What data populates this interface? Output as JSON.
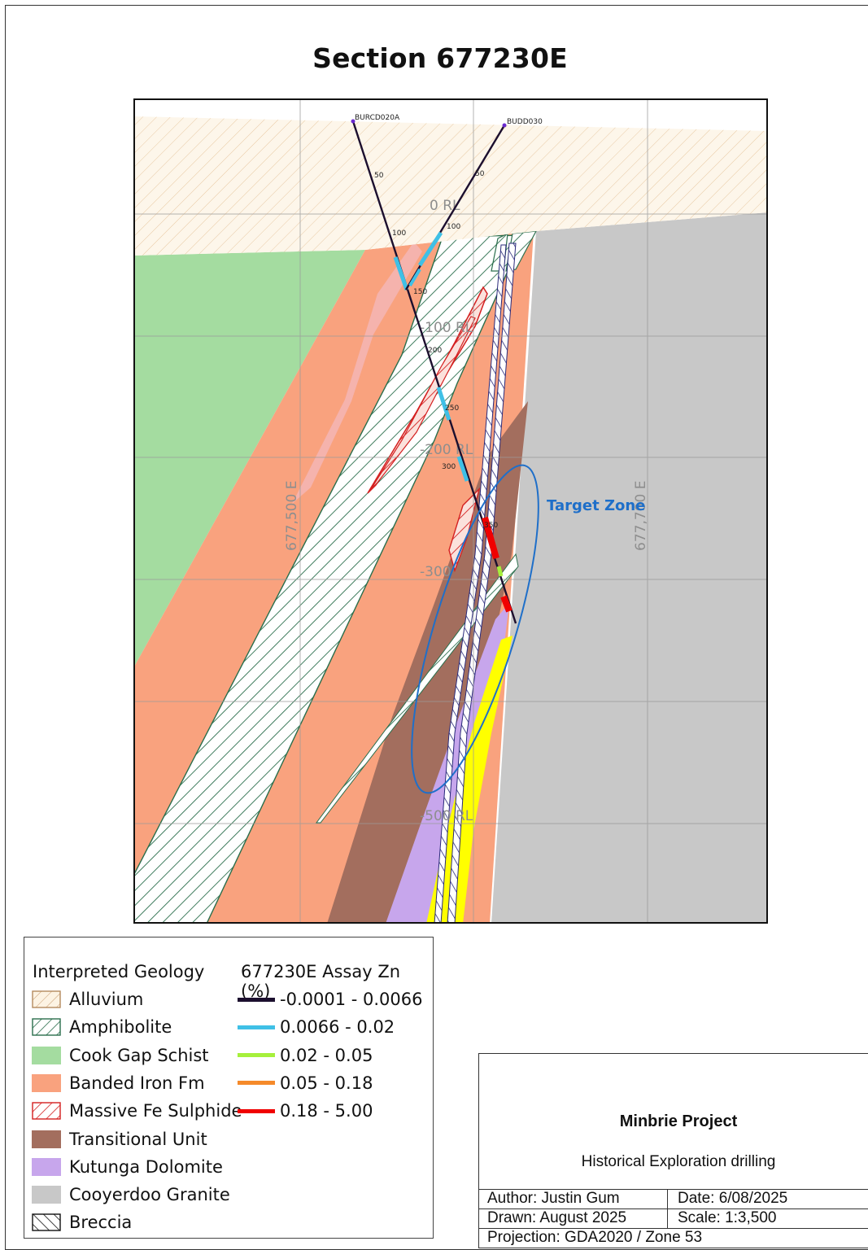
{
  "title": "Section 677230E",
  "map": {
    "grid_labels": {
      "rl_0": "0 RL",
      "rl_100": "-100 RL",
      "rl_200": "-200 RL",
      "rl_300": "-300",
      "rl_500": "-500 RL",
      "e_500": "677,500 E",
      "e_700": "677,700 E"
    },
    "holes": [
      {
        "name": "BURCD020A",
        "depth_labels": [
          "50",
          "100",
          "150",
          "200",
          "250",
          "300",
          "350"
        ]
      },
      {
        "name": "BUDD030",
        "depth_labels": [
          "50",
          "100"
        ]
      }
    ],
    "target_label": "Target Zone"
  },
  "legend": {
    "geology_title": "Interpreted Geology",
    "assay_title": "677230E Assay Zn (%)",
    "geology": [
      {
        "label": "Alluvium",
        "color": "#fdf3e3",
        "pattern": "hatch-brown"
      },
      {
        "label": "Amphibolite",
        "color": "#ffffff",
        "pattern": "hatch-green"
      },
      {
        "label": "Cook Gap Schist",
        "color": "#a4dca0",
        "pattern": "solid"
      },
      {
        "label": "Banded Iron Fm",
        "color": "#f9a27e",
        "pattern": "solid"
      },
      {
        "label": "Massive Fe Sulphide",
        "color": "#ffffff",
        "pattern": "hatch-red"
      },
      {
        "label": "Transitional Unit",
        "color": "#a36e5e",
        "pattern": "solid"
      },
      {
        "label": "Kutunga Dolomite",
        "color": "#c7a6ec",
        "pattern": "solid"
      },
      {
        "label": "Cooyerdoo Granite",
        "color": "#c8c8c8",
        "pattern": "solid"
      },
      {
        "label": "Breccia",
        "color": "#ffffff",
        "pattern": "hatch-black"
      }
    ],
    "assay": [
      {
        "label": "-0.0001 - 0.0066",
        "color": "#1c0f2e"
      },
      {
        "label": "0.0066 - 0.02",
        "color": "#3fc0e6"
      },
      {
        "label": "0.02 - 0.05",
        "color": "#a6f03c"
      },
      {
        "label": "0.05 - 0.18",
        "color": "#f58a2a"
      },
      {
        "label": "0.18 - 5.00",
        "color": "#f00000"
      }
    ]
  },
  "titleblock": {
    "project": "Minbrie Project",
    "subtitle": "Historical Exploration drilling",
    "author": "Author: Justin Gum",
    "date": "Date: 6/08/2025",
    "drawn": "Drawn: August 2025",
    "scale": "Scale: 1:3,500",
    "projection": "Projection: GDA2020 / Zone 53"
  }
}
